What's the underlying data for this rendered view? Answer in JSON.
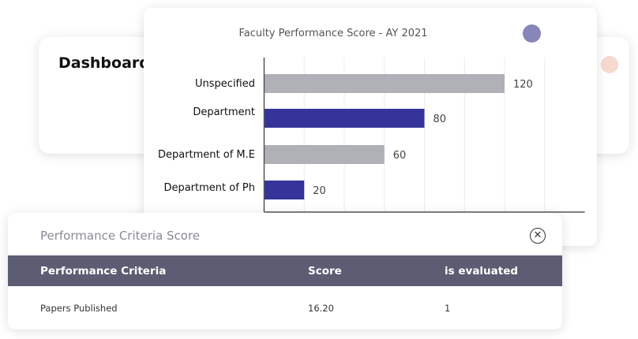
{
  "dashboard": {
    "title": "Dashboard"
  },
  "chart_data": {
    "type": "bar",
    "orientation": "horizontal",
    "title": "Faculty Performance Score - AY 2021",
    "categories": [
      "Unspecified",
      "Department",
      "Department of M.E",
      "Department of Ph"
    ],
    "values": [
      120,
      80,
      60,
      20
    ],
    "bar_colors": [
      "#b0b0b7",
      "#34349a",
      "#b0b0b7",
      "#34349a"
    ],
    "xlim": [
      0,
      160
    ],
    "grid": true,
    "xlabel": "",
    "ylabel": ""
  },
  "table": {
    "title": "Performance Criteria Score",
    "close_icon": "close-circle-icon",
    "header_color": "#5c5c73",
    "columns": [
      "Performance Criteria",
      "Score",
      "is evaluated"
    ],
    "rows": [
      [
        "Papers Published",
        "16.20",
        "1"
      ]
    ]
  }
}
